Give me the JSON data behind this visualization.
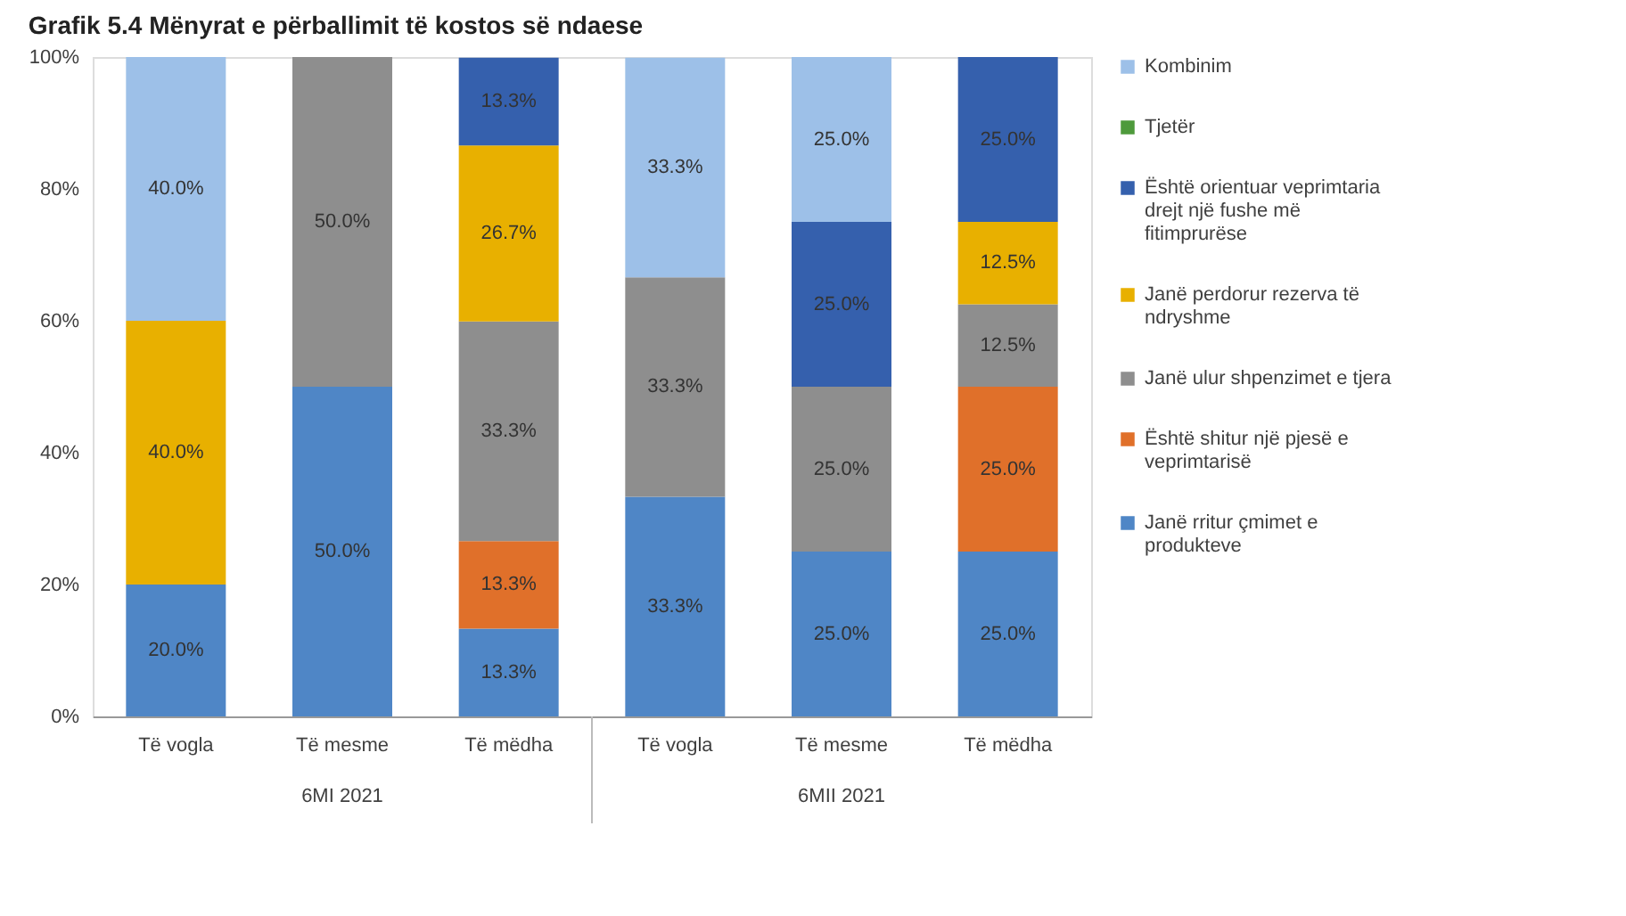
{
  "chart_data": {
    "type": "bar",
    "stacked": true,
    "title": "Grafik 5.4 Mënyrat e përballimit të kostos së ndaese",
    "categories": [
      "Të vogla",
      "Të mesme",
      "Të mëdha",
      "Të vogla",
      "Të mesme",
      "Të mëdha"
    ],
    "annotations": [
      "6MI 2021",
      "6MII 2021"
    ],
    "ylim": [
      0,
      100
    ],
    "yticks": [
      {
        "value": 0,
        "label": "0%"
      },
      {
        "value": 20,
        "label": "20%"
      },
      {
        "value": 40,
        "label": "40%"
      },
      {
        "value": 60,
        "label": "60%"
      },
      {
        "value": 80,
        "label": "80%"
      },
      {
        "value": 100,
        "label": "100%"
      }
    ],
    "grid": false,
    "legend": "right",
    "series": [
      {
        "name": "Janë rritur çmimet e produkteve",
        "color": "#4f86c6",
        "values": [
          20,
          50,
          13.3,
          33.3,
          25,
          25
        ],
        "value_labels": [
          "20.0%",
          "50.0%",
          "13.3%",
          "33.3%",
          "25.0%",
          "25.0%"
        ]
      },
      {
        "name": "Është shitur një pjesë e veprimtarisë",
        "color": "#e0702a",
        "values": [
          null,
          null,
          13.3,
          null,
          null,
          25
        ],
        "value_labels": [
          null,
          null,
          "13.3%",
          null,
          null,
          "25.0%"
        ]
      },
      {
        "name": "Janë ulur shpenzimet e tjera",
        "color": "#8e8e8e",
        "values": [
          null,
          50,
          33.3,
          33.3,
          25,
          12.5
        ],
        "value_labels": [
          null,
          "50.0%",
          "33.3%",
          "33.3%",
          "25.0%",
          "12.5%"
        ]
      },
      {
        "name": "Janë perdorur rezerva të ndryshme",
        "color": "#e8b000",
        "values": [
          40,
          null,
          26.7,
          null,
          null,
          12.5
        ],
        "value_labels": [
          "40.0%",
          null,
          "26.7%",
          null,
          null,
          "12.5%"
        ]
      },
      {
        "name": "Është orientuar veprimtaria drejt një fushe më fitimprurëse",
        "color": "#3560ad",
        "values": [
          null,
          null,
          13.3,
          null,
          25,
          25
        ],
        "value_labels": [
          null,
          null,
          "13.3%",
          null,
          "25.0%",
          "25.0%"
        ]
      },
      {
        "name": "Tjetër",
        "color": "#4e9a3c",
        "values": [
          null,
          null,
          null,
          null,
          null,
          null
        ]
      },
      {
        "name": "Kombinim",
        "color": "#9dc0e8",
        "values": [
          40,
          null,
          null,
          33.3,
          25,
          null
        ],
        "value_labels": [
          "40.0%",
          null,
          null,
          "33.3%",
          "25.0%",
          null
        ]
      }
    ]
  }
}
